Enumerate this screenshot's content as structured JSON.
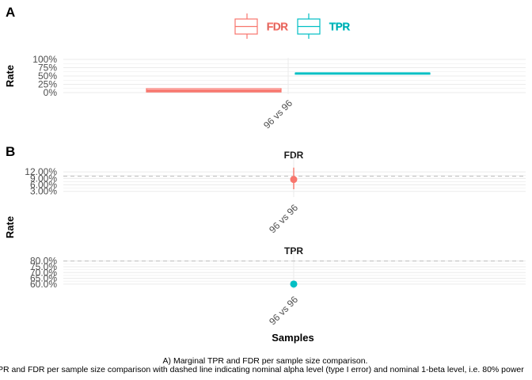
{
  "colors": {
    "FDR": "#F8766D",
    "TPR": "#00BFC4",
    "grid": "#ebebeb",
    "ref": "#bdbdbd"
  },
  "panel_a_tag": "A",
  "panel_b_tag": "B",
  "legend": {
    "items": [
      "FDR",
      "TPR"
    ]
  },
  "caption": {
    "line1": "A) Marginal TPR and FDR per sample size comparison.",
    "line2": "PR and FDR per sample size comparison with dashed line indicating nominal alpha level (type I error) and nominal 1-beta level, i.e. 80% power"
  },
  "chart_data": [
    {
      "type": "boxplot",
      "panel": "A",
      "ylabel": "Rate",
      "categories": [
        "96 vs 96"
      ],
      "y_ticks": [
        "0%",
        "25%",
        "50%",
        "75%",
        "100%"
      ],
      "ylim": [
        0,
        1
      ],
      "series": [
        {
          "name": "FDR",
          "values": [
            0.06
          ],
          "range": [
            0.02,
            0.12
          ]
        },
        {
          "name": "TPR",
          "values": [
            0.58
          ],
          "range": [
            0.57,
            0.59
          ]
        }
      ]
    },
    {
      "type": "pointrange",
      "panel": "B",
      "facet": "FDR",
      "ylabel": "Rate",
      "categories": [
        "96 vs 96"
      ],
      "y_ticks": [
        "3.00%",
        "6.00%",
        "9.00%",
        "12.00%"
      ],
      "ylim": [
        0.018,
        0.15
      ],
      "reference_line": 0.1,
      "value": 0.085,
      "interval": [
        0.04,
        0.14
      ]
    },
    {
      "type": "pointrange",
      "panel": "B",
      "facet": "TPR",
      "xlabel": "Samples",
      "categories": [
        "96 vs 96"
      ],
      "y_ticks": [
        "60.0%",
        "65.0%",
        "70.0%",
        "75.0%",
        "80.0%"
      ],
      "ylim": [
        0.585,
        0.805
      ],
      "reference_line": 0.8,
      "value": 0.6,
      "interval": [
        0.6,
        0.6
      ]
    }
  ]
}
